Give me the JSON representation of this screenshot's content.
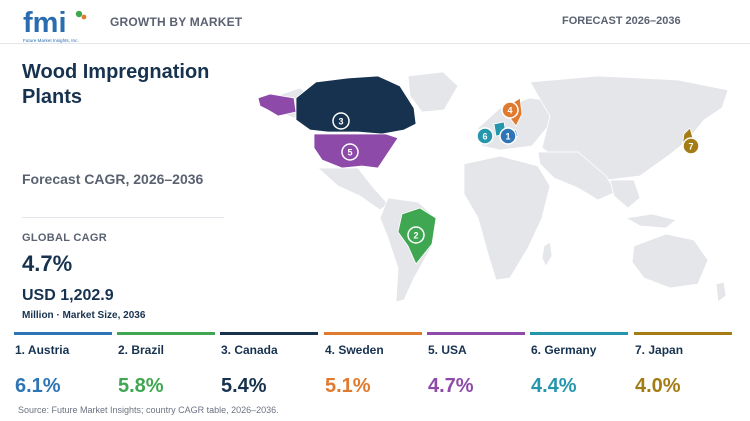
{
  "header": {
    "logo_text": "fmi",
    "logo_tagline": "Future Market Insights, Inc.",
    "left_label": "GROWTH BY MARKET",
    "right_label": "FORECAST 2026–2036"
  },
  "title": "Wood Impregnation Plants",
  "cagr_label": "Forecast CAGR, 2026–2036",
  "global": {
    "label": "GLOBAL CAGR",
    "value": "4.7%",
    "market_size": "USD 1,202.9",
    "market_size_sub": "Million · Market Size, 2036"
  },
  "countries": [
    {
      "rank": "1",
      "label": "1. Austria",
      "cagr": "6.1%",
      "color": "#2e75b6"
    },
    {
      "rank": "2",
      "label": "2. Brazil",
      "cagr": "5.8%",
      "color": "#3fa651"
    },
    {
      "rank": "3",
      "label": "3. Canada",
      "cagr": "5.4%",
      "color": "#16324f"
    },
    {
      "rank": "4",
      "label": "4. Sweden",
      "cagr": "5.1%",
      "color": "#e07a2f"
    },
    {
      "rank": "5",
      "label": "5. USA",
      "cagr": "4.7%",
      "color": "#8e4aa8"
    },
    {
      "rank": "6",
      "label": "6. Germany",
      "cagr": "4.4%",
      "color": "#2596ac"
    },
    {
      "rank": "7",
      "label": "7. Japan",
      "cagr": "4.0%",
      "color": "#a37d14"
    }
  ],
  "colors": {
    "land": "#e4e6e9",
    "logo_blue": "#2b6cb0"
  },
  "source": "Source: Future Market Insights; country CAGR table, 2026–2036."
}
